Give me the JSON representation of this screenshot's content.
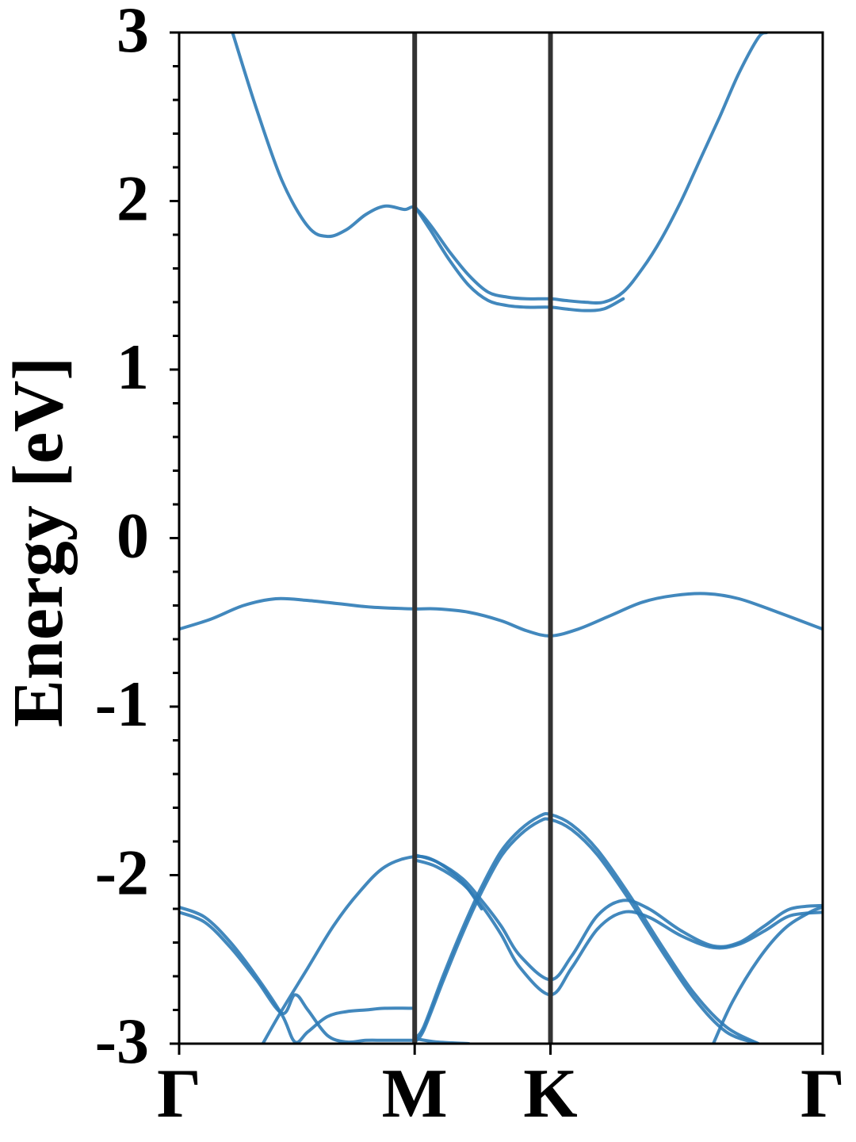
{
  "chart_data": {
    "type": "line",
    "title": "",
    "xlabel": "",
    "ylabel": "Energy [eV]",
    "ylim": [
      -3,
      3
    ],
    "yticks": [
      "3",
      "2",
      "1",
      "0",
      "-1",
      "-2",
      "-3"
    ],
    "ytick_values": [
      3,
      2,
      1,
      0,
      -1,
      -2,
      -3
    ],
    "minor_y_step": 0.2,
    "xlim": [
      0,
      1
    ],
    "kpath": [
      {
        "label": "Γ",
        "x": 0.0
      },
      {
        "label": "M",
        "x": 0.366
      },
      {
        "label": "K",
        "x": 0.577
      },
      {
        "label": "Γ",
        "x": 1.0
      }
    ],
    "grid": false,
    "colors": {
      "band": "#2d7bb6",
      "kline": "#333333",
      "axis": "#000000"
    },
    "series": [
      {
        "x": [
          0.083,
          0.12,
          0.16,
          0.2,
          0.23,
          0.26,
          0.29,
          0.32,
          0.35,
          0.366,
          0.39,
          0.42,
          0.45,
          0.48,
          0.51,
          0.54,
          0.577,
          0.6,
          0.63,
          0.66,
          0.69,
          0.72,
          0.75,
          0.78,
          0.81,
          0.84,
          0.87,
          0.9,
          0.913
        ],
        "y": [
          3.0,
          2.55,
          2.12,
          1.85,
          1.79,
          1.83,
          1.92,
          1.97,
          1.95,
          1.96,
          1.86,
          1.7,
          1.56,
          1.46,
          1.43,
          1.42,
          1.42,
          1.41,
          1.4,
          1.4,
          1.46,
          1.6,
          1.78,
          2.0,
          2.25,
          2.5,
          2.76,
          2.97,
          3.0
        ]
      },
      {
        "x": [
          0.366,
          0.39,
          0.42,
          0.45,
          0.48,
          0.51,
          0.54,
          0.577,
          0.6,
          0.63,
          0.66,
          0.69
        ],
        "y": [
          1.97,
          1.83,
          1.65,
          1.5,
          1.41,
          1.38,
          1.37,
          1.37,
          1.36,
          1.35,
          1.36,
          1.42
        ]
      },
      {
        "x": [
          0.0,
          0.05,
          0.1,
          0.15,
          0.2,
          0.25,
          0.3,
          0.366,
          0.4,
          0.45,
          0.5,
          0.54,
          0.577,
          0.62,
          0.67,
          0.72,
          0.77,
          0.82,
          0.87,
          0.93,
          1.0
        ],
        "y": [
          -0.54,
          -0.48,
          -0.4,
          -0.36,
          -0.37,
          -0.39,
          -0.41,
          -0.42,
          -0.42,
          -0.44,
          -0.49,
          -0.55,
          -0.58,
          -0.54,
          -0.46,
          -0.38,
          -0.34,
          -0.33,
          -0.36,
          -0.44,
          -0.54
        ]
      },
      {
        "x": [
          0.0,
          0.04,
          0.08,
          0.12,
          0.16,
          0.18,
          0.2,
          0.23,
          0.26,
          0.29,
          0.32,
          0.366
        ],
        "y": [
          -2.19,
          -2.25,
          -2.4,
          -2.6,
          -2.83,
          -2.99,
          -2.93,
          -2.84,
          -2.81,
          -2.8,
          -2.79,
          -2.79
        ]
      },
      {
        "x": [
          0.0,
          0.04,
          0.08,
          0.12,
          0.16,
          0.18,
          0.2,
          0.23,
          0.26,
          0.29,
          0.32,
          0.366
        ],
        "y": [
          -2.22,
          -2.28,
          -2.43,
          -2.62,
          -2.82,
          -2.71,
          -2.8,
          -2.95,
          -2.99,
          -2.98,
          -2.98,
          -2.98
        ]
      },
      {
        "x": [
          0.13,
          0.16,
          0.2,
          0.24,
          0.28,
          0.32,
          0.366,
          0.4,
          0.44,
          0.47
        ],
        "y": [
          -3.0,
          -2.8,
          -2.55,
          -2.3,
          -2.1,
          -1.95,
          -1.89,
          -1.92,
          -2.04,
          -2.2
        ]
      },
      {
        "x": [
          0.366,
          0.4,
          0.44,
          0.47,
          0.5,
          0.53,
          0.577,
          0.61,
          0.65,
          0.69,
          0.73,
          0.78,
          0.83,
          0.87,
          0.91,
          0.95,
          1.0
        ],
        "y": [
          -1.88,
          -1.92,
          -2.02,
          -2.15,
          -2.3,
          -2.48,
          -2.62,
          -2.48,
          -2.24,
          -2.15,
          -2.2,
          -2.33,
          -2.42,
          -2.4,
          -2.3,
          -2.2,
          -2.18
        ]
      },
      {
        "x": [
          0.366,
          0.4,
          0.44,
          0.47,
          0.5,
          0.53,
          0.577,
          0.61,
          0.65,
          0.69,
          0.73,
          0.78,
          0.83,
          0.87,
          0.91,
          0.95,
          1.0
        ],
        "y": [
          -1.91,
          -1.95,
          -2.05,
          -2.18,
          -2.35,
          -2.55,
          -2.71,
          -2.55,
          -2.32,
          -2.22,
          -2.25,
          -2.36,
          -2.43,
          -2.41,
          -2.33,
          -2.24,
          -2.22
        ]
      },
      {
        "x": [
          0.366,
          0.38,
          0.41,
          0.44,
          0.47,
          0.5,
          0.53,
          0.56,
          0.577,
          0.61,
          0.65,
          0.7,
          0.75,
          0.8,
          0.85,
          0.9
        ],
        "y": [
          -2.97,
          -2.9,
          -2.6,
          -2.32,
          -2.07,
          -1.86,
          -1.73,
          -1.65,
          -1.64,
          -1.7,
          -1.85,
          -2.12,
          -2.42,
          -2.7,
          -2.9,
          -3.0
        ]
      },
      {
        "x": [
          0.366,
          0.38,
          0.41,
          0.44,
          0.47,
          0.5,
          0.53,
          0.56,
          0.577,
          0.61,
          0.65,
          0.7,
          0.75,
          0.8,
          0.85,
          0.9
        ],
        "y": [
          -2.99,
          -2.92,
          -2.63,
          -2.35,
          -2.1,
          -1.89,
          -1.76,
          -1.68,
          -1.67,
          -1.73,
          -1.88,
          -2.15,
          -2.45,
          -2.73,
          -2.93,
          -3.0
        ]
      },
      {
        "x": [
          0.83,
          0.86,
          0.9,
          0.94,
          0.98,
          1.0
        ],
        "y": [
          -3.0,
          -2.75,
          -2.5,
          -2.32,
          -2.22,
          -2.19
        ]
      },
      {
        "x": [
          0.366,
          0.4,
          0.45
        ],
        "y": [
          -2.97,
          -2.99,
          -3.0
        ]
      }
    ]
  }
}
